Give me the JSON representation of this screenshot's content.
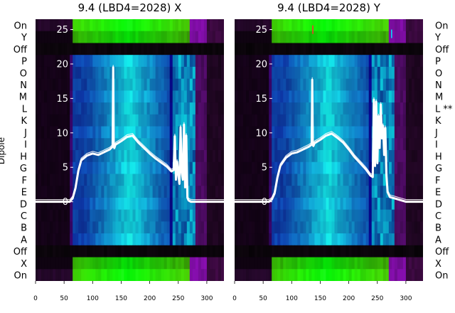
{
  "chart_data": [
    {
      "type": "heatmap",
      "title": "9.4 (LBD4=2028) X",
      "ylabel": "Dipole",
      "dipole_labels": [
        "On",
        "Y",
        "Off",
        "P",
        "O",
        "N",
        "M",
        "L",
        "K",
        "J",
        "I",
        "H",
        "G",
        "F",
        "E",
        "D",
        "C",
        "B",
        "A",
        "Off",
        "X",
        "On"
      ],
      "xticks": [
        0,
        50,
        100,
        150,
        200,
        250,
        300
      ],
      "xlim": [
        0,
        330
      ],
      "overlay_yticks": [
        0,
        5,
        10,
        15,
        20,
        25
      ],
      "overlay_ylim": [
        -11.5,
        26.5
      ],
      "overlay_series": [
        {
          "x": [
            0,
            50,
            60,
            65,
            70,
            75,
            80,
            90,
            100,
            110,
            120,
            130,
            135,
            136,
            137,
            138,
            140,
            150,
            160,
            170,
            180,
            190,
            200,
            210,
            220,
            230,
            238,
            242,
            244,
            246,
            248,
            250,
            252,
            254,
            256,
            258,
            260,
            262,
            264,
            266,
            268,
            272,
            280,
            300,
            330
          ],
          "y": [
            0,
            0,
            0,
            0.5,
            2,
            4.5,
            6,
            6.7,
            7,
            6.8,
            7.2,
            7.6,
            8,
            19.5,
            8.2,
            7.8,
            8.3,
            8.8,
            9.4,
            9.6,
            8.6,
            7.8,
            7,
            6.3,
            5.7,
            5.1,
            4.4,
            4.6,
            9.5,
            3.2,
            5.8,
            4,
            2.6,
            10.8,
            4.3,
            3.2,
            11.2,
            2.1,
            9.6,
            0.6,
            0.2,
            0,
            0,
            0,
            0
          ]
        }
      ],
      "markers": []
    },
    {
      "type": "heatmap",
      "title": "9.4 (LBD4=2028) Y",
      "ylabel": "",
      "dipole_labels": [
        "On",
        "Y",
        "Off",
        "P",
        "O",
        "N",
        "M",
        "L **",
        "K",
        "J",
        "I",
        "H",
        "G",
        "F",
        "E",
        "D",
        "C",
        "B",
        "A",
        "Off",
        "X",
        "On"
      ],
      "xticks": [
        0,
        50,
        100,
        150,
        200,
        250,
        300
      ],
      "xlim": [
        0,
        330
      ],
      "overlay_yticks": [
        0,
        5,
        10,
        15,
        20,
        25
      ],
      "overlay_ylim": [
        -11.5,
        26.5
      ],
      "overlay_series": [
        {
          "x": [
            0,
            50,
            60,
            65,
            70,
            75,
            80,
            90,
            100,
            110,
            120,
            130,
            135,
            136,
            137,
            138,
            140,
            150,
            160,
            170,
            180,
            190,
            200,
            210,
            220,
            230,
            238,
            242,
            244,
            246,
            248,
            250,
            252,
            254,
            256,
            258,
            260,
            262,
            264,
            266,
            268,
            272,
            280,
            300,
            330
          ],
          "y": [
            0,
            0,
            0,
            0.3,
            1.2,
            3.5,
            5.2,
            6.4,
            7,
            7.2,
            7.6,
            8,
            8.3,
            17.7,
            8.3,
            8.1,
            8.5,
            9,
            9.6,
            9.9,
            9.3,
            8.6,
            7.6,
            6.5,
            5.6,
            4.7,
            3.8,
            3.6,
            14.8,
            5.2,
            14.5,
            5.6,
            12.4,
            7.8,
            14.1,
            9.2,
            11,
            6.8,
            10.7,
            3.8,
            1.4,
            0.7,
            0.5,
            0,
            0
          ]
        }
      ],
      "markers": [
        {
          "x": 137,
          "y": 25.6,
          "color": "#ff3030"
        },
        {
          "x": 275,
          "y": 25,
          "color": "#00e8ff"
        }
      ]
    }
  ]
}
